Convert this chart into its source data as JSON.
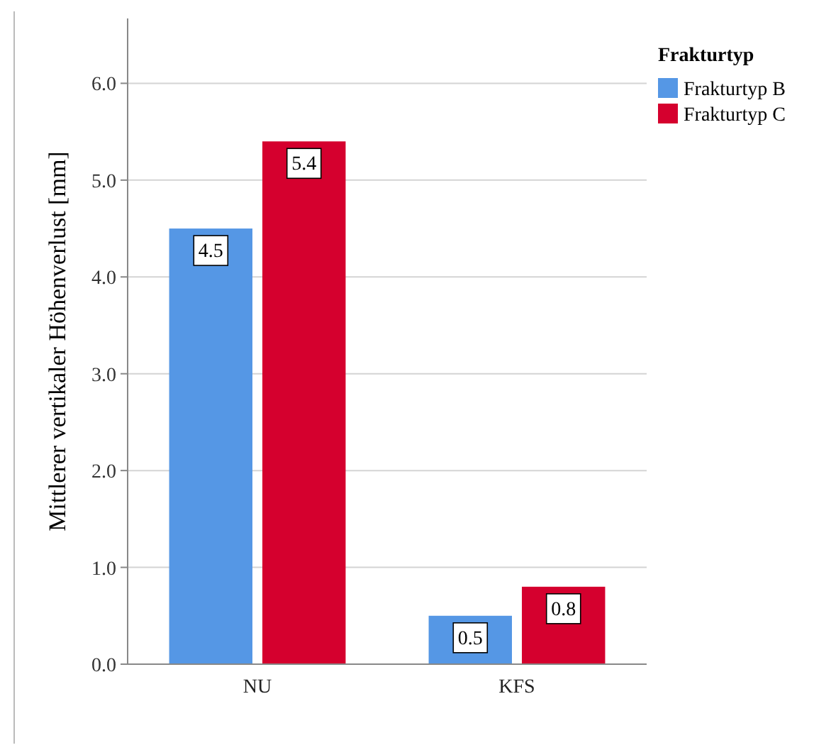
{
  "chart_data": {
    "type": "bar",
    "ylabel": "Mittlerer vertikaler Höhenverlust [mm]",
    "legend_title": "Frakturtyp",
    "categories": [
      "NU",
      "KFS"
    ],
    "series": [
      {
        "name": "Frakturtyp B",
        "color": "#5597e5",
        "values": [
          4.5,
          0.5
        ]
      },
      {
        "name": "Frakturtyp C",
        "color": "#d5002e",
        "values": [
          5.4,
          0.8
        ]
      }
    ],
    "ylim": [
      0,
      6.67
    ],
    "yticks": [
      {
        "value": 0,
        "label": "0.0"
      },
      {
        "value": 1,
        "label": "1.0"
      },
      {
        "value": 2,
        "label": "2.0"
      },
      {
        "value": 3,
        "label": "3.0"
      },
      {
        "value": 4,
        "label": "4.0"
      },
      {
        "value": 5,
        "label": "5.0"
      },
      {
        "value": 6,
        "label": "6.0"
      }
    ],
    "grid": "y",
    "legend": "top right",
    "data_labels": true
  }
}
